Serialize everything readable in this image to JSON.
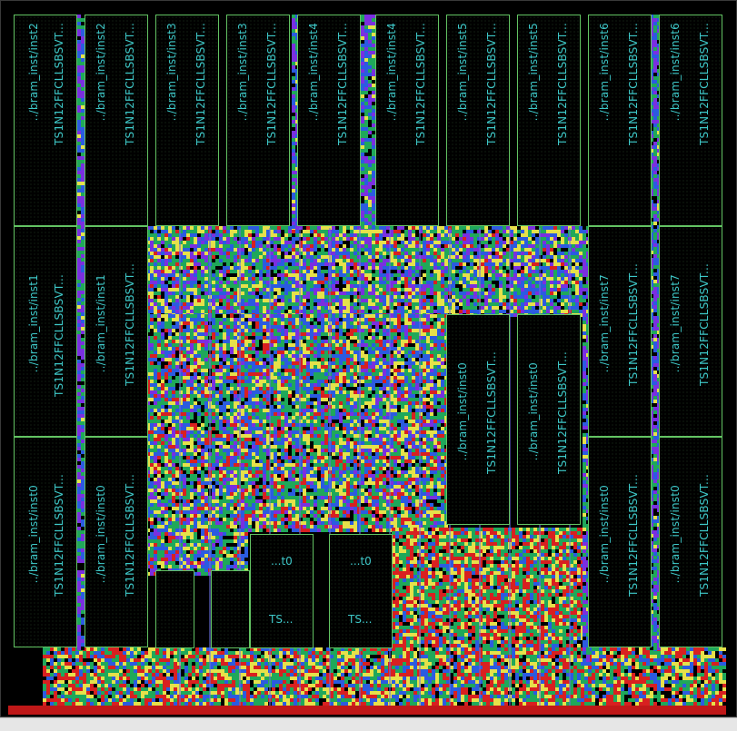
{
  "canvas": {
    "title": ""
  },
  "colors": {
    "background": "#000000",
    "macro_border": "#63c463",
    "label_text": "#3ec8c8",
    "congestion_low": "#7a2fe0",
    "congestion_mid": "#1fa85a",
    "congestion_high": "#e6e14a",
    "congestion_max": "#d82020",
    "rail": "#c01818"
  },
  "macros": [
    {
      "id": "m1",
      "label1": "../bram_inst/inst2",
      "label2": "TS1N12FFCLLSBSVT..."
    },
    {
      "id": "m2",
      "label1": "../bram_inst/inst2",
      "label2": "TS1N12FFCLLSBSVT..."
    },
    {
      "id": "m3",
      "label1": "../bram_inst/inst3",
      "label2": "TS1N12FFCLLSBSVT..."
    },
    {
      "id": "m4",
      "label1": "../bram_inst/inst3",
      "label2": "TS1N12FFCLLSBSVT..."
    },
    {
      "id": "m5",
      "label1": "../bram_inst/inst4",
      "label2": "TS1N12FFCLLSBSVT..."
    },
    {
      "id": "m6",
      "label1": "../bram_inst/inst4",
      "label2": "TS1N12FFCLLSBSVT..."
    },
    {
      "id": "m7",
      "label1": "../bram_inst/inst5",
      "label2": "TS1N12FFCLLSBSVT..."
    },
    {
      "id": "m8",
      "label1": "../bram_inst/inst5",
      "label2": "TS1N12FFCLLSBSVT..."
    },
    {
      "id": "m9",
      "label1": "../bram_inst/inst6",
      "label2": "TS1N12FFCLLSBSVT..."
    },
    {
      "id": "m10",
      "label1": "../bram_inst/inst6",
      "label2": "TS1N12FFCLLSBSVT..."
    },
    {
      "id": "m11",
      "label1": "../bram_inst/inst1",
      "label2": "TS1N12FFCLLSBSVT..."
    },
    {
      "id": "m12",
      "label1": "../bram_inst/inst1",
      "label2": "TS1N12FFCLLSBSVT..."
    },
    {
      "id": "m13",
      "label1": "../bram_inst/inst7",
      "label2": "TS1N12FFCLLSBSVT..."
    },
    {
      "id": "m14",
      "label1": "../bram_inst/inst7",
      "label2": "TS1N12FFCLLSBSVT..."
    },
    {
      "id": "m15",
      "label1": "../bram_inst/inst0",
      "label2": "TS1N12FFCLLSBSVT..."
    },
    {
      "id": "m16",
      "label1": "../bram_inst/inst0",
      "label2": "TS1N12FFCLLSBSVT..."
    },
    {
      "id": "m17",
      "label1": "../bram_inst/inst0",
      "label2": "TS1N12FFCLLSBSVT..."
    },
    {
      "id": "m18",
      "label1": "../bram_inst/inst0",
      "label2": "TS1N12FFCLLSBSVT..."
    },
    {
      "id": "m19",
      "label1": "../bram_inst/inst0",
      "label2": "TS1N12FFCLLSBSVT..."
    },
    {
      "id": "m20",
      "label1": "../bram_inst/inst0",
      "label2": "TS1N12FFCLLSBSVT..."
    },
    {
      "id": "s1",
      "label1": "...t0",
      "label2": "TS..."
    },
    {
      "id": "s2",
      "label1": "...t0",
      "label2": "TS..."
    },
    {
      "id": "s3",
      "label1": "",
      "label2": ""
    },
    {
      "id": "s4",
      "label1": "",
      "label2": ""
    }
  ]
}
